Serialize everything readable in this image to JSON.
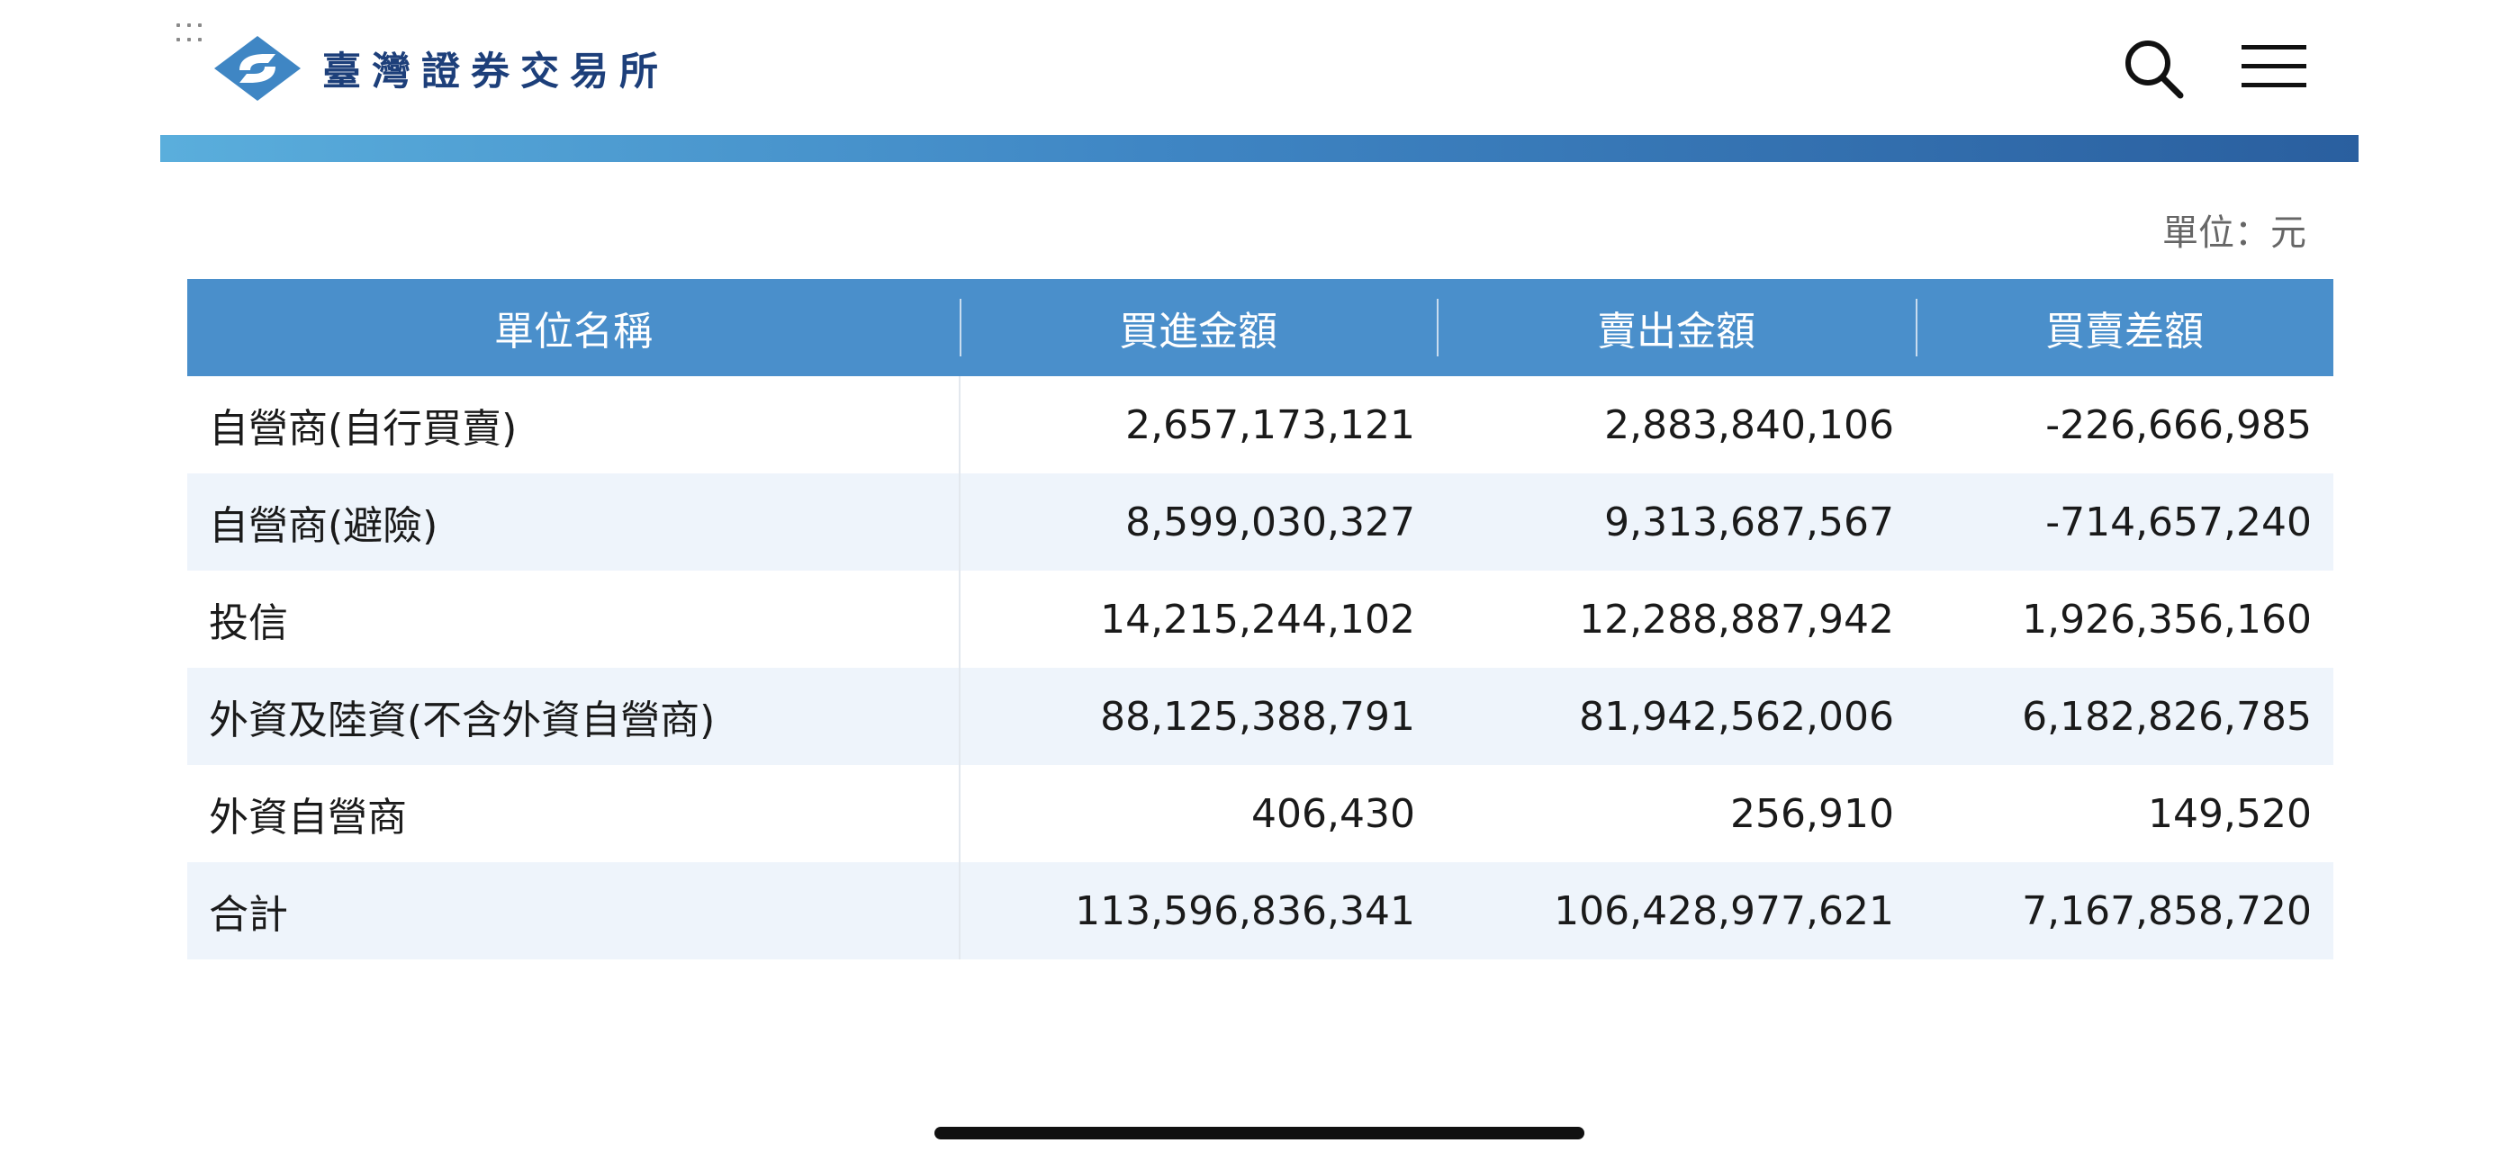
{
  "header": {
    "logo_text": "臺灣證券交易所",
    "brand_colors": {
      "primary": "#1d3f7a",
      "accent": "#4a8fcb",
      "bar_start": "#5aaedc",
      "bar_end": "#2a5f9f"
    }
  },
  "icons": {
    "search": "search-icon",
    "menu": "hamburger-menu-icon",
    "logo": "twse-logo-icon",
    "dots": "grid-dots-icon"
  },
  "unit_label": "單位：元",
  "table": {
    "columns": [
      "單位名稱",
      "買進金額",
      "賣出金額",
      "買賣差額"
    ],
    "rows": [
      {
        "name": "自營商(自行買賣)",
        "buy": "2,657,173,121",
        "sell": "2,883,840,106",
        "diff": "-226,666,985"
      },
      {
        "name": "自營商(避險)",
        "buy": "8,599,030,327",
        "sell": "9,313,687,567",
        "diff": "-714,657,240"
      },
      {
        "name": "投信",
        "buy": "14,215,244,102",
        "sell": "12,288,887,942",
        "diff": "1,926,356,160"
      },
      {
        "name": "外資及陸資(不含外資自營商)",
        "buy": "88,125,388,791",
        "sell": "81,942,562,006",
        "diff": "6,182,826,785"
      },
      {
        "name": "外資自營商",
        "buy": "406,430",
        "sell": "256,910",
        "diff": "149,520"
      },
      {
        "name": "合計",
        "buy": "113,596,836,341",
        "sell": "106,428,977,621",
        "diff": "7,167,858,720"
      }
    ]
  }
}
